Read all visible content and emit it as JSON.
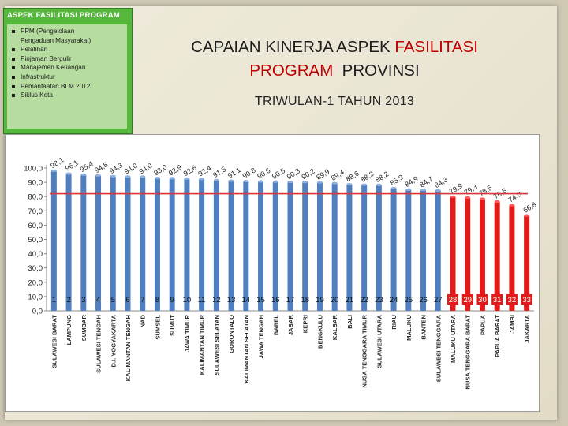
{
  "side_panel": {
    "title": "ASPEK FASILITASI PROGRAM",
    "items": [
      "PPM (Pengelolaan",
      "Pengaduan Masyarakat)",
      "Pelatihan",
      "Pinjaman Bergulir",
      "Manajemen Keuangan",
      "Infrastruktur",
      "Pemanfaatan BLM 2012",
      "Siklus Kota"
    ]
  },
  "header": {
    "title_part1": "CAPAIAN KINERJA ASPEK ",
    "title_part2": "FASILITASI",
    "title_part3": "PROGRAM",
    "title_part4": "  PROVINSI",
    "subtitle": "TRIWULAN-1 TAHUN 2013"
  },
  "colors": {
    "bar_blue": "#4f7fbf",
    "bar_red": "#e11a1a",
    "target_line": "#d9363b",
    "title_red": "#c00000",
    "panel_green": "#55b73c"
  },
  "chart_data": {
    "type": "bar",
    "categories": [
      "SULAWESI BARAT",
      "LAMPUNG",
      "SUMBAR",
      "SULAWESI TENGAH",
      "D.I. YOGYAKARTA",
      "KALIMANTAN TENGAH",
      "NAD",
      "SUMSEL",
      "SUMUT",
      "JAWA TIMUR",
      "KALIMANTAN TIMUR",
      "SULAWESI SELATAN",
      "GORONTALO",
      "KALIMANTAN SELATAN",
      "JAWA TENGAH",
      "BABEL",
      "JABAR",
      "KEPRI",
      "BENGKULU",
      "KALBAR",
      "BALI",
      "NUSA TENGGARA TIMUR",
      "SULAWESI UTARA",
      "RIAU",
      "MALUKU",
      "BANTEN",
      "SULAWESI TENGGARA",
      "MALUKU UTARA",
      "NUSA TENGGARA BARAT",
      "PAPUA",
      "PAPUA BARAT",
      "JAMBI",
      "JAKARTA"
    ],
    "values": [
      98.1,
      96.1,
      95.4,
      94.8,
      94.3,
      94.0,
      94.0,
      93.0,
      92.9,
      92.6,
      92.4,
      91.5,
      91.1,
      90.8,
      90.6,
      90.5,
      90.3,
      90.2,
      89.9,
      89.4,
      88.6,
      88.3,
      88.2,
      85.9,
      84.9,
      84.7,
      84.3,
      79.9,
      79.3,
      78.5,
      76.5,
      74.0,
      66.8
    ],
    "value_labels": [
      "98,1",
      "96,1",
      "95,4",
      "94,8",
      "94,3",
      "94,0",
      "94,0",
      "93,0",
      "92,9",
      "92,6",
      "92,4",
      "91,5",
      "91,1",
      "90,8",
      "90,6",
      "90,5",
      "90,3",
      "90,2",
      "89,9",
      "89,4",
      "88,6",
      "88,3",
      "88,2",
      "85,9",
      "84,9",
      "84,7",
      "84,3",
      "79,9",
      "79,3",
      "78,5",
      "76,5",
      "74,0",
      "66,8"
    ],
    "rank_labels": [
      "1",
      "2",
      "3",
      "4",
      "5",
      "6",
      "7",
      "8",
      "9",
      "10",
      "11",
      "12",
      "13",
      "14",
      "15",
      "16",
      "17",
      "18",
      "19",
      "20",
      "21",
      "22",
      "23",
      "24",
      "25",
      "26",
      "27",
      "28",
      "29",
      "30",
      "31",
      "32",
      "33"
    ],
    "highlight_red_from_index": 27,
    "target_value": 82,
    "y_ticks": [
      "0,0",
      "10,0",
      "20,0",
      "30,0",
      "40,0",
      "50,0",
      "60,0",
      "70,0",
      "80,0",
      "90,0",
      "100,0"
    ],
    "ylim": [
      0,
      100
    ],
    "grid": false,
    "legend": "none"
  }
}
